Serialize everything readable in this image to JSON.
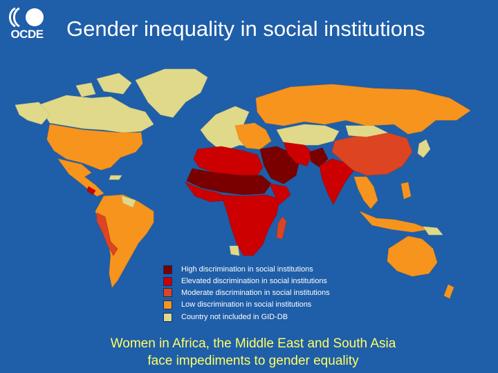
{
  "title": "Gender inequality in social institutions",
  "logo": {
    "name": "oecd-logo",
    "text": "OCDE"
  },
  "subtitle": {
    "line1": "Women in Africa, the Middle East and South Asia",
    "line2": "face impediments to gender equality"
  },
  "colors": {
    "ocean": "#1f5ea8",
    "high": "#7a0000",
    "elevated": "#cc0000",
    "moderate": "#dd4422",
    "low": "#f7941d",
    "not_included": "#e0d98a",
    "subtitle": "#ffff66"
  },
  "legend": [
    {
      "label": "High discrimination in social institutions",
      "color": "#7a0000"
    },
    {
      "label": "Elevated discrimination in social institutions",
      "color": "#cc0000"
    },
    {
      "label": "Moderate discrimination in social institutions",
      "color": "#dd4422"
    },
    {
      "label": "Low discrimination in social institutions",
      "color": "#f7941d"
    },
    {
      "label": "Country not included in GID-DB",
      "color": "#e0d98a"
    }
  ]
}
